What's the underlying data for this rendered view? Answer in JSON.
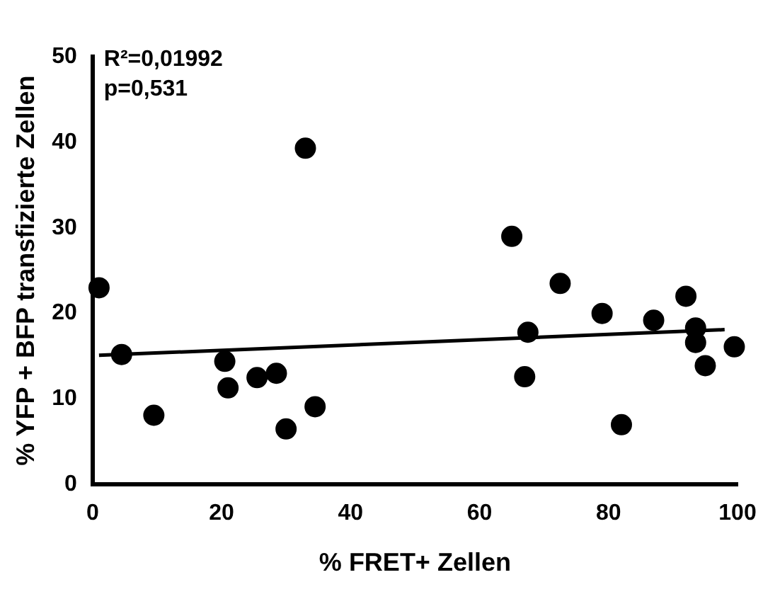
{
  "chart_data": {
    "type": "scatter",
    "xlabel": "% FRET+ Zellen",
    "ylabel": "% YFP + BFP transfizierte Zellen",
    "annotations": [
      "R²=0,01992",
      "p=0,531"
    ],
    "xlim": [
      0,
      100
    ],
    "xticks": [
      0,
      20,
      40,
      60,
      80,
      100
    ],
    "ylim": [
      0,
      50
    ],
    "yticks": [
      0,
      10,
      20,
      30,
      40,
      50
    ],
    "grid": false,
    "legend": false,
    "marker": "circle",
    "series": [
      {
        "type": "scatter",
        "color": "#000000",
        "x": [
          1,
          4.5,
          9.5,
          20.5,
          21,
          25.5,
          28.5,
          30,
          33,
          34.5,
          65,
          67,
          67.5,
          72.5,
          79,
          82,
          87,
          92,
          93.5,
          93.5,
          95,
          99.5
        ],
        "values": [
          23,
          15.2,
          8.1,
          14.4,
          11.3,
          12.5,
          13,
          6.5,
          39.3,
          9.1,
          29,
          12.6,
          17.8,
          23.5,
          20,
          7,
          19.2,
          22,
          18.3,
          16.6,
          13.9,
          16.1
        ]
      },
      {
        "type": "line",
        "color": "#000000",
        "marker": "none",
        "x": [
          1,
          98
        ],
        "values": [
          15.1,
          18.1
        ]
      }
    ]
  }
}
